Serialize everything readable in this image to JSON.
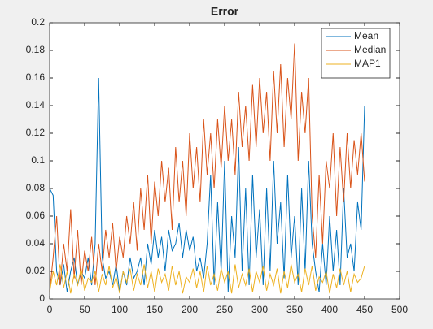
{
  "chart_data": {
    "type": "line",
    "title": "Error",
    "x": [
      0,
      5,
      10,
      15,
      20,
      25,
      30,
      35,
      40,
      45,
      50,
      55,
      60,
      65,
      70,
      75,
      80,
      85,
      90,
      95,
      100,
      105,
      110,
      115,
      120,
      125,
      130,
      135,
      140,
      145,
      150,
      155,
      160,
      165,
      170,
      175,
      180,
      185,
      190,
      195,
      200,
      205,
      210,
      215,
      220,
      225,
      230,
      235,
      240,
      245,
      250,
      255,
      260,
      265,
      270,
      275,
      280,
      285,
      290,
      295,
      300,
      305,
      310,
      315,
      320,
      325,
      330,
      335,
      340,
      345,
      350,
      355,
      360,
      365,
      370,
      375,
      380,
      385,
      390,
      395,
      400,
      405,
      410,
      415,
      420,
      425,
      430,
      435,
      440,
      445,
      450
    ],
    "series": [
      {
        "name": "Mean",
        "color": "#0072bd",
        "values": [
          0.08,
          0.075,
          0.02,
          0.01,
          0.025,
          0.005,
          0.02,
          0.03,
          0.01,
          0.02,
          0.015,
          0.03,
          0.01,
          0.04,
          0.16,
          0.03,
          0.015,
          0.02,
          0.01,
          0.025,
          0.005,
          0.02,
          0.01,
          0.03,
          0.015,
          0.02,
          0.03,
          0.01,
          0.04,
          0.025,
          0.05,
          0.03,
          0.045,
          0.02,
          0.05,
          0.035,
          0.04,
          0.055,
          0.03,
          0.05,
          0.035,
          0.045,
          0.02,
          0.03,
          0.015,
          0.04,
          0.09,
          0.01,
          0.07,
          0.02,
          0.1,
          0.005,
          0.06,
          0.03,
          0.11,
          0.02,
          0.08,
          0.01,
          0.09,
          0.03,
          0.065,
          0.01,
          0.08,
          0.02,
          0.1,
          0.04,
          0.07,
          0.015,
          0.09,
          0.03,
          0.06,
          0.01,
          0.08,
          0.02,
          0.1,
          0.04,
          0.02,
          0.005,
          0.04,
          0.01,
          0.06,
          0.02,
          0.05,
          0.01,
          0.08,
          0.03,
          0.04,
          0.02,
          0.07,
          0.05,
          0.14
        ]
      },
      {
        "name": "Median",
        "color": "#d95319",
        "values": [
          0.005,
          0.03,
          0.06,
          0.01,
          0.04,
          0.02,
          0.065,
          0.015,
          0.05,
          0.01,
          0.035,
          0.02,
          0.045,
          0.01,
          0.04,
          0.02,
          0.05,
          0.03,
          0.055,
          0.02,
          0.045,
          0.03,
          0.06,
          0.04,
          0.07,
          0.035,
          0.08,
          0.05,
          0.09,
          0.04,
          0.085,
          0.06,
          0.1,
          0.07,
          0.095,
          0.05,
          0.11,
          0.07,
          0.1,
          0.06,
          0.12,
          0.08,
          0.11,
          0.07,
          0.13,
          0.09,
          0.12,
          0.08,
          0.13,
          0.095,
          0.14,
          0.1,
          0.13,
          0.09,
          0.15,
          0.11,
          0.14,
          0.1,
          0.155,
          0.11,
          0.16,
          0.12,
          0.15,
          0.1,
          0.165,
          0.12,
          0.17,
          0.11,
          0.16,
          0.13,
          0.185,
          0.1,
          0.15,
          0.12,
          0.16,
          0.06,
          0.03,
          0.09,
          0.04,
          0.1,
          0.08,
          0.12,
          0.06,
          0.11,
          0.07,
          0.12,
          0.08,
          0.115,
          0.09,
          0.12,
          0.085
        ]
      },
      {
        "name": "MAP1",
        "color": "#edb120",
        "values": [
          0.005,
          0.02,
          0.01,
          0.025,
          0.008,
          0.02,
          0.004,
          0.018,
          0.01,
          0.022,
          0.006,
          0.015,
          0.012,
          0.02,
          0.005,
          0.018,
          0.01,
          0.024,
          0.008,
          0.016,
          0.004,
          0.02,
          0.012,
          0.022,
          0.006,
          0.018,
          0.01,
          0.025,
          0.008,
          0.02,
          0.005,
          0.022,
          0.012,
          0.018,
          0.006,
          0.024,
          0.01,
          0.02,
          0.004,
          0.016,
          0.012,
          0.022,
          0.008,
          0.02,
          0.005,
          0.024,
          0.01,
          0.018,
          0.006,
          0.022,
          0.012,
          0.02,
          0.004,
          0.025,
          0.008,
          0.018,
          0.01,
          0.022,
          0.005,
          0.02,
          0.012,
          0.024,
          0.006,
          0.018,
          0.01,
          0.022,
          0.004,
          0.02,
          0.008,
          0.025,
          0.012,
          0.018,
          0.005,
          0.022,
          0.01,
          0.024,
          0.006,
          0.016,
          0.012,
          0.02,
          0.004,
          0.018,
          0.008,
          0.022,
          0.01,
          0.02,
          0.005,
          0.018,
          0.012,
          0.015,
          0.024
        ]
      }
    ],
    "xlim": [
      0,
      500
    ],
    "xticks": [
      0,
      50,
      100,
      150,
      200,
      250,
      300,
      350,
      400,
      450,
      500
    ],
    "ylim": [
      0,
      0.2
    ],
    "yticks": [
      0,
      0.02,
      0.04,
      0.06,
      0.08,
      0.1,
      0.12,
      0.14,
      0.16,
      0.18,
      0.2
    ],
    "legend": "northeast",
    "grid": false
  }
}
